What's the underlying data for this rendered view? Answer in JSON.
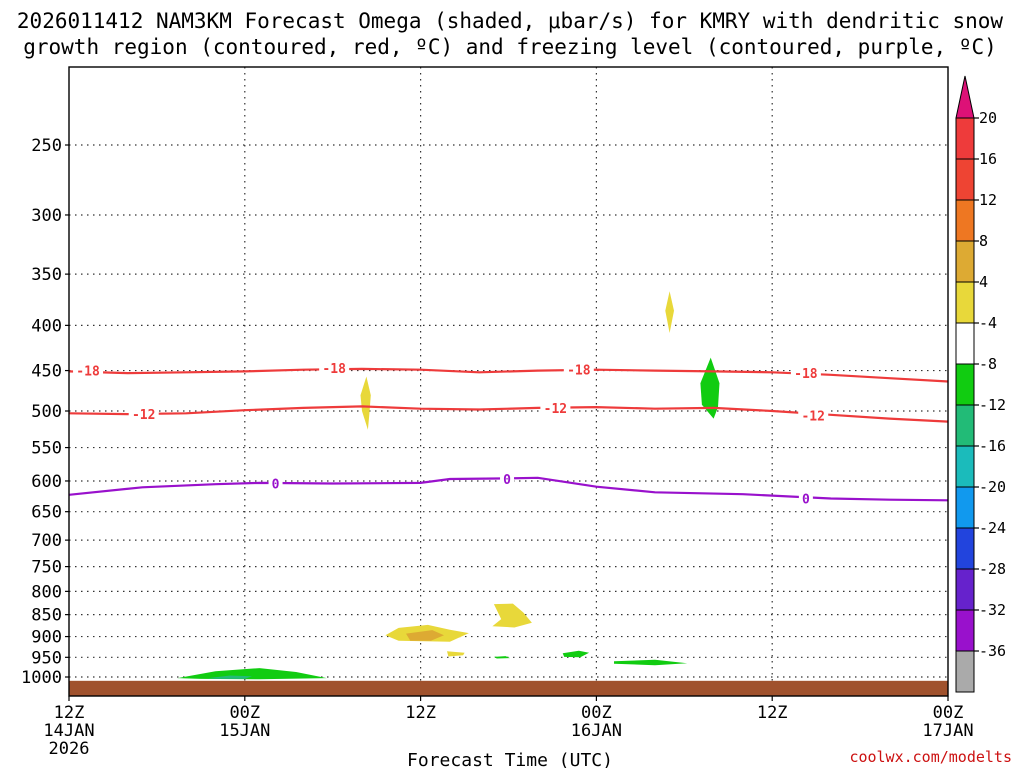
{
  "chart_data": {
    "type": "contour",
    "title_lines": [
      "2026011412 NAM3KM Forecast Omega (shaded, μbar/s) for KMRY with dendritic snow",
      "growth region (contoured, red, ºC) and freezing level (contoured, purple, ºC)"
    ],
    "xlabel": "Forecast Time (UTC)",
    "ylabel": "",
    "credit": "coolwx.com/modelts",
    "x_range_hours": [
      0,
      60
    ],
    "y_range_hpa": [
      200,
      1030
    ],
    "x_ticks": [
      {
        "hour": 0,
        "lines": [
          "12Z",
          "14JAN",
          "2026"
        ]
      },
      {
        "hour": 12,
        "lines": [
          "00Z",
          "15JAN"
        ]
      },
      {
        "hour": 24,
        "lines": [
          "12Z"
        ]
      },
      {
        "hour": 36,
        "lines": [
          "00Z",
          "16JAN"
        ]
      },
      {
        "hour": 48,
        "lines": [
          "12Z"
        ]
      },
      {
        "hour": 60,
        "lines": [
          "00Z",
          "17JAN"
        ]
      }
    ],
    "y_ticks": [
      250,
      300,
      350,
      400,
      450,
      500,
      550,
      600,
      650,
      700,
      750,
      800,
      850,
      900,
      950,
      1000
    ],
    "ground_level_hpa": 1010,
    "colorbar": {
      "labels": [
        "20",
        "16",
        "12",
        "8",
        "4",
        "-4",
        "-8",
        "-12",
        "-16",
        "-20",
        "-24",
        "-28",
        "-32",
        "-36"
      ],
      "colors": [
        "#ee3b3b",
        "#ee4433",
        "#ee7722",
        "#ddaa33",
        "#e8d83a",
        "#ffffff",
        "#11cc11",
        "#22bb77",
        "#1bbbbb",
        "#1199ee",
        "#2244dd",
        "#6622cc",
        "#9911cc",
        "#aaaaaa"
      ],
      "top_arrow_color": "#dd1177",
      "bottom_arrow_color": "#000000"
    },
    "series": [
      {
        "name": "-18",
        "color": "#ee3b3b",
        "points": [
          [
            0,
            451
          ],
          [
            4,
            453
          ],
          [
            8,
            452
          ],
          [
            12,
            451
          ],
          [
            16,
            449
          ],
          [
            20,
            448
          ],
          [
            24,
            449
          ],
          [
            28,
            452
          ],
          [
            32,
            450
          ],
          [
            36,
            449
          ],
          [
            40,
            450
          ],
          [
            44,
            451
          ],
          [
            48,
            452
          ],
          [
            52,
            455
          ],
          [
            56,
            459
          ],
          [
            60,
            463
          ]
        ],
        "labels": [
          [
            1.3,
            450
          ],
          [
            18.1,
            447
          ],
          [
            34.8,
            449
          ],
          [
            50.3,
            453
          ]
        ]
      },
      {
        "name": "-12",
        "color": "#ee3b3b",
        "points": [
          [
            0,
            503
          ],
          [
            4,
            504
          ],
          [
            8,
            503
          ],
          [
            12,
            499
          ],
          [
            16,
            496
          ],
          [
            20,
            494
          ],
          [
            24,
            497
          ],
          [
            28,
            498
          ],
          [
            32,
            496
          ],
          [
            36,
            495
          ],
          [
            40,
            497
          ],
          [
            44,
            496
          ],
          [
            48,
            500
          ],
          [
            52,
            505
          ],
          [
            56,
            510
          ],
          [
            60,
            514
          ]
        ],
        "labels": [
          [
            5.1,
            504
          ],
          [
            33.2,
            496
          ],
          [
            50.8,
            506
          ]
        ]
      },
      {
        "name": "0",
        "color": "#9911cc",
        "points": [
          [
            0,
            622
          ],
          [
            5,
            610
          ],
          [
            10,
            605
          ],
          [
            13,
            603
          ],
          [
            18,
            604
          ],
          [
            24,
            603
          ],
          [
            26,
            597
          ],
          [
            30,
            596
          ],
          [
            32,
            595
          ],
          [
            36,
            609
          ],
          [
            40,
            618
          ],
          [
            46,
            621
          ],
          [
            52,
            628
          ],
          [
            56,
            630
          ],
          [
            60,
            631
          ]
        ],
        "labels": [
          [
            14.1,
            604
          ],
          [
            29.9,
            597
          ],
          [
            50.3,
            628
          ]
        ]
      }
    ],
    "shaded_regions": [
      {
        "color": "#e8d83a",
        "points": [
          [
            20.3,
            457
          ],
          [
            20.6,
            480
          ],
          [
            20.5,
            505
          ],
          [
            20.4,
            525
          ],
          [
            20.0,
            500
          ],
          [
            19.9,
            480
          ]
        ]
      },
      {
        "color": "#e8d83a",
        "points": [
          [
            41.0,
            366
          ],
          [
            41.3,
            385
          ],
          [
            41.0,
            408
          ],
          [
            40.7,
            385
          ]
        ]
      },
      {
        "color": "#11cc11",
        "points": [
          [
            43.8,
            435
          ],
          [
            44.4,
            465
          ],
          [
            44.3,
            495
          ],
          [
            44.0,
            510
          ],
          [
            43.2,
            492
          ],
          [
            43.1,
            465
          ]
        ]
      },
      {
        "color": "#e8d83a",
        "points": [
          [
            22.5,
            880
          ],
          [
            24.5,
            873
          ],
          [
            26.0,
            884
          ],
          [
            27.3,
            892
          ],
          [
            26.0,
            912
          ],
          [
            22.5,
            910
          ],
          [
            21.6,
            897
          ]
        ]
      },
      {
        "color": "#ddaa33",
        "points": [
          [
            23.0,
            893
          ],
          [
            24.8,
            885
          ],
          [
            25.6,
            897
          ],
          [
            24.7,
            910
          ],
          [
            23.3,
            910
          ]
        ]
      },
      {
        "color": "#e8d83a",
        "points": [
          [
            25.8,
            935
          ],
          [
            27.0,
            939
          ],
          [
            26.9,
            945
          ],
          [
            25.9,
            948
          ]
        ]
      },
      {
        "color": "#e8d83a",
        "points": [
          [
            29.0,
            827
          ],
          [
            30.3,
            826
          ],
          [
            31.0,
            845
          ],
          [
            31.6,
            868
          ],
          [
            30.4,
            879
          ],
          [
            28.9,
            876
          ],
          [
            29.5,
            860
          ]
        ]
      },
      {
        "color": "#11cc11",
        "points": [
          [
            7.4,
            1003
          ],
          [
            10.0,
            985
          ],
          [
            13.0,
            977
          ],
          [
            15.5,
            987
          ],
          [
            17.6,
            1003
          ],
          [
            13.0,
            1006
          ],
          [
            9.0,
            1005
          ]
        ]
      },
      {
        "color": "#22bb77",
        "points": [
          [
            9.5,
            1003
          ],
          [
            11.0,
            996
          ],
          [
            12.5,
            998
          ],
          [
            12.0,
            1005
          ],
          [
            10.0,
            1005
          ]
        ]
      },
      {
        "color": "#11cc11",
        "points": [
          [
            33.7,
            940
          ],
          [
            34.8,
            934
          ],
          [
            35.5,
            939
          ],
          [
            34.9,
            950
          ],
          [
            33.8,
            949
          ]
        ]
      },
      {
        "color": "#11cc11",
        "points": [
          [
            37.2,
            960
          ],
          [
            40.0,
            956
          ],
          [
            42.2,
            965
          ],
          [
            40.0,
            970
          ],
          [
            37.2,
            966
          ]
        ]
      },
      {
        "color": "#11cc11",
        "points": [
          [
            29.0,
            949
          ],
          [
            29.8,
            947
          ],
          [
            30.1,
            952
          ],
          [
            29.2,
            953
          ]
        ]
      }
    ]
  }
}
